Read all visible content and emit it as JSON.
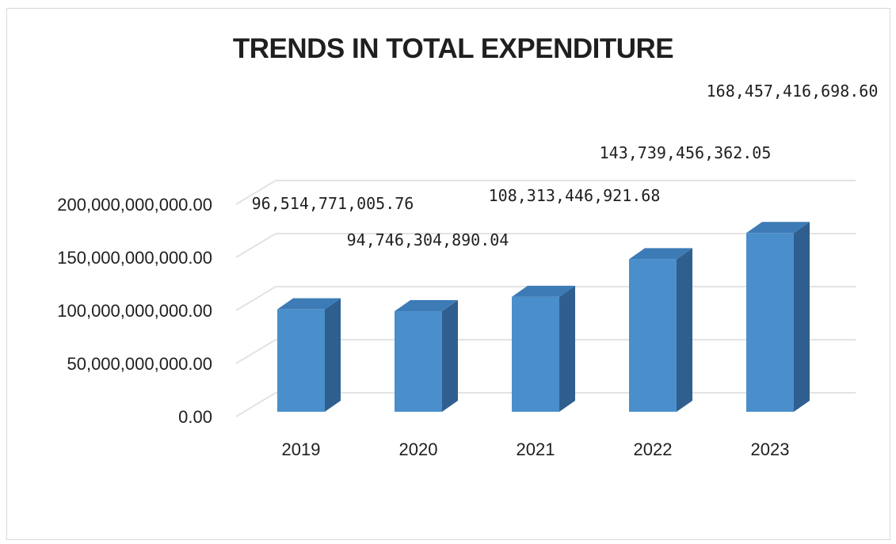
{
  "chart_data": {
    "type": "bar",
    "title": "TRENDS IN TOTAL EXPENDITURE",
    "categories": [
      "2019",
      "2020",
      "2021",
      "2022",
      "2023"
    ],
    "values": [
      96514771005.76,
      94746304890.04,
      108313446921.68,
      143739456362.05,
      168457416698.6
    ],
    "data_labels": [
      "96,514,771,005.76",
      "94,746,304,890.04",
      "108,313,446,921.68",
      "143,739,456,362.05",
      "168,457,416,698.60"
    ],
    "ylim": [
      0,
      200000000000
    ],
    "y_ticks": [
      0,
      50000000000,
      100000000000,
      150000000000,
      200000000000
    ],
    "y_tick_labels": [
      "0.00",
      "50,000,000,000.00",
      "100,000,000,000.00",
      "150,000,000,000.00",
      "200,000,000,000.00"
    ],
    "grid": true,
    "style": "3d-column",
    "colors": {
      "bar_front": "#4a8fcb",
      "bar_side": "#2f5f8f",
      "bar_top": "#3d7bb6",
      "grid": "#e3e3e3"
    }
  }
}
